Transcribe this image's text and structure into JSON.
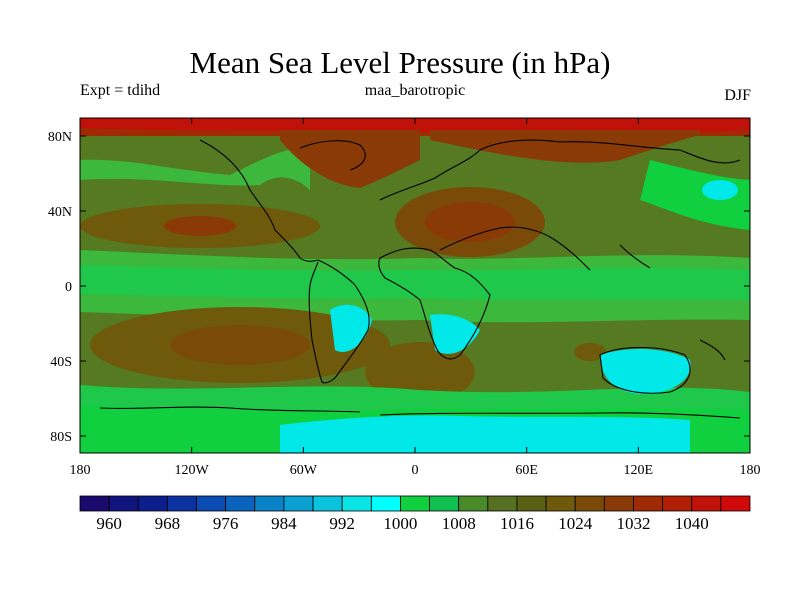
{
  "header": {
    "title": "Mean Sea Level Pressure (in hPa)",
    "experiment": "Expt = tdihd",
    "model": "maa_barotropic",
    "season": "DJF"
  },
  "map": {
    "lat_labels": [
      "80N",
      "40N",
      "0",
      "40S",
      "80S"
    ],
    "lon_labels": [
      "180",
      "120W",
      "60W",
      "0",
      "60E",
      "120E",
      "180"
    ]
  },
  "colorbar": {
    "labels": [
      "960",
      "968",
      "976",
      "984",
      "992",
      "1000",
      "1008",
      "1016",
      "1024",
      "1032",
      "1040"
    ],
    "colors": [
      "#1a0a6e",
      "#11147c",
      "#0a1e8c",
      "#0a32a0",
      "#0a4bb4",
      "#0a64be",
      "#0a82c8",
      "#0aa0d2",
      "#0ac3dc",
      "#0ae6e6",
      "#00ffff",
      "#10d040",
      "#10c050",
      "#4a8a28",
      "#557020",
      "#5a6014",
      "#6e5a0a",
      "#7a4a08",
      "#8a3a06",
      "#a02a04",
      "#b01e04",
      "#c01208",
      "#d00a0a"
    ]
  },
  "style": {
    "ocean_base": "#557a22",
    "green_light": "#10d040",
    "green_mid": "#3cb83c",
    "brown": "#7a4a08",
    "brown_dark": "#8a3a06",
    "red": "#a02a04",
    "cyan": "#00e8e8",
    "coast": "#000000"
  }
}
